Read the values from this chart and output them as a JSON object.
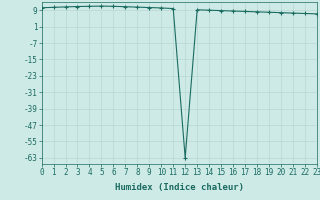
{
  "x": [
    0,
    1,
    2,
    3,
    4,
    5,
    6,
    7,
    8,
    9,
    10,
    11,
    12,
    13,
    14,
    15,
    16,
    17,
    18,
    19,
    20,
    21,
    22,
    23
  ],
  "y": [
    10.2,
    10.4,
    10.6,
    10.8,
    10.9,
    11.0,
    10.9,
    10.7,
    10.5,
    10.3,
    10.1,
    9.8,
    -63,
    9.2,
    9.0,
    8.8,
    8.6,
    8.4,
    8.2,
    8.0,
    7.8,
    7.6,
    7.4,
    7.2
  ],
  "line_color": "#1a6b60",
  "marker": "+",
  "marker_size": 3,
  "marker_lw": 0.8,
  "line_width": 0.8,
  "bg_color": "#ceeae7",
  "grid_color": "#b8d8d4",
  "xlabel": "Humidex (Indice chaleur)",
  "ytick_labels": [
    "9",
    "1",
    "-7",
    "-15",
    "-23",
    "-31",
    "-39",
    "-47",
    "-55",
    "-63"
  ],
  "ytick_values": [
    9,
    1,
    -7,
    -15,
    -23,
    -31,
    -39,
    -47,
    -55,
    -63
  ],
  "xtick_values": [
    0,
    1,
    2,
    3,
    4,
    5,
    6,
    7,
    8,
    9,
    10,
    11,
    12,
    13,
    14,
    15,
    16,
    17,
    18,
    19,
    20,
    21,
    22,
    23
  ],
  "xlim": [
    0,
    23
  ],
  "ylim": [
    -66,
    13
  ],
  "ax_color": "#1a6b60",
  "tick_fontsize": 5.5,
  "xlabel_fontsize": 6.5
}
